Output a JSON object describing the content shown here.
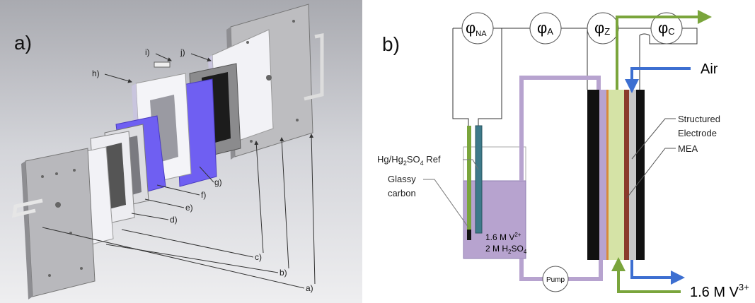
{
  "panel_a": {
    "label": "a)",
    "callouts": [
      "i)",
      "j)",
      "h)",
      "g)",
      "f)",
      "e)",
      "d)",
      "c)",
      "b)",
      "a)"
    ]
  },
  "panel_b": {
    "label": "b)",
    "potentials": [
      {
        "symbol": "φ",
        "sub": "NA"
      },
      {
        "symbol": "φ",
        "sub": "A"
      },
      {
        "symbol": "φ",
        "sub": "Z"
      },
      {
        "symbol": "φ",
        "sub": "C"
      }
    ],
    "air": "Air",
    "structured_electrode": [
      "Structured",
      "Electrode"
    ],
    "mea": "MEA",
    "reference": [
      "Hg/Hg",
      "2",
      "SO",
      "4",
      " Ref"
    ],
    "glassy_carbon": [
      "Glassy",
      "carbon"
    ],
    "anolyte": {
      "concentration": [
        "1.6 M V",
        "2+"
      ],
      "acid": [
        "2 M H",
        "2",
        "SO",
        "4"
      ]
    },
    "pump": "Pump",
    "catholyte": [
      "1.6 M V",
      "3+"
    ]
  }
}
